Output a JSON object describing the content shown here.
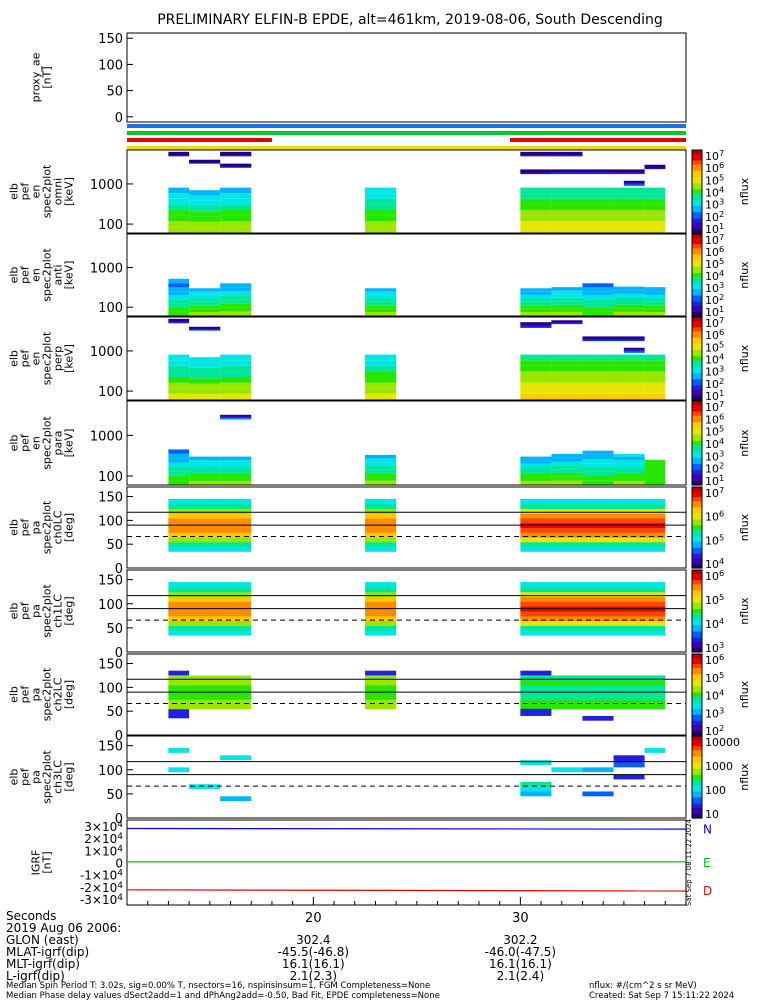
{
  "title": "PRELIMINARY ELFIN-B EPDE, alt=461km, 2019-08-06, South Descending",
  "x_axis": {
    "ticks": [
      "20",
      "30"
    ],
    "row_labels": [
      "Seconds",
      "2019 Aug 06 2006:",
      "GLON (east)",
      "MLAT-igrf(dip)",
      "MLT-igrf(dip)",
      "L-igrf(dip)"
    ],
    "rows": [
      [
        "",
        ""
      ],
      [
        "",
        ""
      ],
      [
        "302.4",
        "302.2"
      ],
      [
        "-45.5(-46.8)",
        "-46.0(-47.5)"
      ],
      [
        "16.1(16.1)",
        "16.1(16.1)"
      ],
      [
        "2.1(2.3)",
        "2.1(2.4)"
      ]
    ]
  },
  "footer": {
    "left1": "Median Spin Period T: 3.02s, sig=0.00% T, nsectors=16, nspinsinsum=1, FGM Completeness=None",
    "left2": "Median Phase delay values dSect2add=1 and dPhAng2add=-0.50, Bad Fit, EPDE completeness=None",
    "right1": "nflux: #/(cm^2 s sr MeV)",
    "right2": "Created: Sat Sep  7 15:11:22 2024"
  },
  "side_stamp": "Sat Sep  7 08:11:22 2024",
  "status_bar_colors": [
    "#1f6fe6",
    "#00c832",
    "#e60000",
    "#f0dc00"
  ],
  "colormap": [
    "#22007a",
    "#3d00b4",
    "#2020e0",
    "#0060ff",
    "#00b4ff",
    "#00e6e6",
    "#00e69a",
    "#28e600",
    "#9ae600",
    "#e6e600",
    "#ffc800",
    "#ff8c00",
    "#ff4600",
    "#e60000",
    "#b40000"
  ],
  "chart_data": [
    {
      "type": "line",
      "name": "proxy_ae",
      "ylabel": "proxy_ae\n[nT]",
      "yticks": [
        "150",
        "100",
        "50",
        "0"
      ],
      "ylim": [
        -10,
        160
      ],
      "series": []
    },
    {
      "type": "heatmap",
      "ylabel": "elb\npef\nen\nspec2plot\nomni\n[keV]",
      "yscale": "log",
      "yticks": [
        "1000",
        "100"
      ],
      "cbar_ticks": [
        "10^7",
        "10^6",
        "10^5",
        "10^4",
        "10^3",
        "10^2",
        "10^1"
      ],
      "cbar_label": "nflux",
      "blocks": [
        [
          13.0,
          14.0,
          5000,
          6300,
          0.5
        ],
        [
          14.0,
          15.5,
          3300,
          4000,
          0.9
        ],
        [
          15.5,
          17.0,
          2600,
          3200,
          1.0
        ],
        [
          15.5,
          17.0,
          5000,
          6300,
          0.4
        ],
        [
          13.0,
          14.0,
          62,
          810,
          7.0
        ],
        [
          14.0,
          15.5,
          62,
          700,
          7.0
        ],
        [
          15.5,
          17.0,
          62,
          810,
          7.0
        ],
        [
          22.5,
          24.0,
          62,
          810,
          7.2
        ],
        [
          30.0,
          31.5,
          62,
          810,
          8.2
        ],
        [
          31.5,
          33.0,
          62,
          810,
          8.2
        ],
        [
          33.0,
          34.5,
          62,
          810,
          8.2
        ],
        [
          34.5,
          36.0,
          62,
          810,
          8.2
        ],
        [
          36.0,
          37.0,
          62,
          810,
          8.2
        ],
        [
          30.0,
          31.5,
          5000,
          6300,
          0.6
        ],
        [
          31.5,
          33.0,
          5000,
          6300,
          1.2
        ],
        [
          30.0,
          31.5,
          1800,
          2300,
          0.7
        ],
        [
          31.5,
          33.0,
          1800,
          2300,
          1.5
        ],
        [
          33.0,
          34.5,
          1800,
          2300,
          1.8
        ],
        [
          34.5,
          36.0,
          1800,
          2300,
          1.3
        ],
        [
          36.0,
          37.0,
          2400,
          3000,
          0.8
        ],
        [
          35.0,
          36.0,
          900,
          1200,
          2.5
        ]
      ]
    },
    {
      "type": "heatmap",
      "ylabel": "elb\npef\nen\nspec2plot\nanti\n[keV]",
      "yscale": "log",
      "yticks": [
        "1000",
        "100"
      ],
      "cbar_ticks": [
        "10^7",
        "10^6",
        "10^5",
        "10^4",
        "10^3",
        "10^2",
        "10^1"
      ],
      "cbar_label": "nflux",
      "blocks": [
        [
          13.0,
          14.0,
          400,
          520,
          3.5
        ],
        [
          13.0,
          14.0,
          62,
          400,
          6.0
        ],
        [
          14.0,
          15.5,
          62,
          300,
          6.8
        ],
        [
          15.5,
          17.0,
          62,
          400,
          6.5
        ],
        [
          22.5,
          24.0,
          62,
          300,
          6.8
        ],
        [
          30.0,
          31.5,
          62,
          300,
          6.5
        ],
        [
          31.5,
          33.0,
          62,
          320,
          6.7
        ],
        [
          33.0,
          34.5,
          62,
          400,
          6.0
        ],
        [
          34.5,
          36.0,
          62,
          330,
          6.5
        ],
        [
          36.0,
          37.0,
          62,
          300,
          6.5
        ],
        [
          36.0,
          37.0,
          250,
          320,
          3.5
        ]
      ]
    },
    {
      "type": "heatmap",
      "ylabel": "elb\npef\nen\nspec2plot\nperp\n[keV]",
      "yscale": "log",
      "yticks": [
        "1000",
        "100"
      ],
      "cbar_ticks": [
        "10^7",
        "10^6",
        "10^5",
        "10^4",
        "10^3",
        "10^2",
        "10^1"
      ],
      "cbar_label": "nflux",
      "blocks": [
        [
          13.0,
          14.0,
          5000,
          6300,
          1.5
        ],
        [
          14.0,
          15.5,
          3300,
          4000,
          2.0
        ],
        [
          13.0,
          14.0,
          62,
          810,
          7.5
        ],
        [
          14.0,
          15.5,
          62,
          700,
          7.5
        ],
        [
          15.5,
          17.0,
          62,
          810,
          7.5
        ],
        [
          22.5,
          24.0,
          62,
          810,
          7.6
        ],
        [
          30.0,
          31.5,
          62,
          810,
          8.8
        ],
        [
          31.5,
          33.0,
          62,
          810,
          8.8
        ],
        [
          33.0,
          34.5,
          62,
          810,
          8.8
        ],
        [
          34.5,
          36.0,
          62,
          810,
          8.8
        ],
        [
          36.0,
          37.0,
          62,
          810,
          8.8
        ],
        [
          30.0,
          31.5,
          3800,
          5200,
          1.8
        ],
        [
          31.5,
          33.0,
          4800,
          5800,
          1.6
        ],
        [
          33.0,
          34.5,
          1800,
          2300,
          1.6
        ],
        [
          34.5,
          36.0,
          1800,
          2300,
          1.6
        ],
        [
          35.0,
          36.0,
          900,
          1200,
          2.8
        ]
      ]
    },
    {
      "type": "heatmap",
      "ylabel": "elb\npef\nen\nspec2plot\npara\n[keV]",
      "yscale": "log",
      "yticks": [
        "1000",
        "100"
      ],
      "cbar_ticks": [
        "10^7",
        "10^6",
        "10^5",
        "10^4",
        "10^3",
        "10^2",
        "10^1"
      ],
      "cbar_label": "nflux",
      "blocks": [
        [
          15.5,
          17.0,
          2500,
          3200,
          3.0
        ],
        [
          13.0,
          14.0,
          62,
          450,
          6.0
        ],
        [
          14.0,
          15.5,
          62,
          300,
          6.8
        ],
        [
          15.5,
          17.0,
          62,
          300,
          6.8
        ],
        [
          22.5,
          24.0,
          62,
          330,
          6.6
        ],
        [
          30.0,
          31.5,
          62,
          300,
          6.5
        ],
        [
          31.5,
          33.0,
          62,
          350,
          6.5
        ],
        [
          33.0,
          34.5,
          62,
          420,
          6.2
        ],
        [
          34.5,
          36.0,
          62,
          300,
          6.8
        ],
        [
          36.0,
          37.0,
          62,
          250,
          7.2
        ],
        [
          34.5,
          36.0,
          300,
          350,
          4.5
        ]
      ]
    },
    {
      "type": "heatmap",
      "ylabel": "elb\npef\npa\nspec2plot\nch0LC\n[deg]",
      "yscale": "linear",
      "ylim": [
        0,
        170
      ],
      "yticks": [
        "150",
        "100",
        "50",
        "0"
      ],
      "cbar_ticks": [
        "10^7",
        "10^6",
        "10^5",
        "10^4"
      ],
      "cbar_label": "nflux",
      "hlines": [
        90,
        117
      ],
      "dashed_y": 66,
      "blocks": [
        [
          13.0,
          17.0,
          35,
          145,
          "pa"
        ],
        [
          22.5,
          24.0,
          35,
          145,
          "pa"
        ],
        [
          30.0,
          37.0,
          35,
          145,
          "pa2"
        ]
      ]
    },
    {
      "type": "heatmap",
      "ylabel": "elb\npef\npa\nspec2plot\nch1LC\n[deg]",
      "yscale": "linear",
      "ylim": [
        0,
        170
      ],
      "yticks": [
        "150",
        "100",
        "50",
        "0"
      ],
      "cbar_ticks": [
        "10^6",
        "10^5",
        "10^4",
        "10^3"
      ],
      "cbar_label": "nflux",
      "hlines": [
        90,
        117
      ],
      "dashed_y": 66,
      "blocks": [
        [
          13.0,
          17.0,
          35,
          145,
          "pa"
        ],
        [
          22.5,
          24.0,
          35,
          145,
          "pa"
        ],
        [
          30.0,
          37.0,
          35,
          145,
          "pa2"
        ]
      ]
    },
    {
      "type": "heatmap",
      "ylabel": "elb\npef\npa\nspec2plot\nch2LC\n[deg]",
      "yscale": "linear",
      "ylim": [
        0,
        170
      ],
      "yticks": [
        "150",
        "100",
        "50",
        "0"
      ],
      "cbar_ticks": [
        "10^6",
        "10^5",
        "10^4",
        "10^3",
        "10^2"
      ],
      "cbar_label": "nflux",
      "hlines": [
        90,
        117
      ],
      "dashed_y": 66,
      "blocks": [
        [
          13.0,
          14.0,
          125,
          135,
          1.5
        ],
        [
          13.0,
          14.0,
          35,
          55,
          1.5
        ],
        [
          13.0,
          17.0,
          55,
          125,
          "pag"
        ],
        [
          22.5,
          24.0,
          55,
          125,
          "pag"
        ],
        [
          22.5,
          24.0,
          125,
          135,
          1.5
        ],
        [
          30.0,
          37.0,
          55,
          125,
          "pag2"
        ],
        [
          30.0,
          31.5,
          40,
          55,
          1.8
        ],
        [
          33.0,
          34.5,
          30,
          40,
          1.5
        ],
        [
          30.0,
          31.5,
          125,
          135,
          1.5
        ]
      ]
    },
    {
      "type": "heatmap",
      "ylabel": "elb\npef\npa\nspec2plot\nch3LC\n[deg]",
      "yscale": "linear",
      "ylim": [
        0,
        170
      ],
      "yticks": [
        "150",
        "100",
        "50",
        "0"
      ],
      "cbar_ticks": [
        "10000",
        "1000",
        "100",
        "10"
      ],
      "cbar_label": "nflux",
      "hlines": [
        90,
        117
      ],
      "dashed_y": 66,
      "blocks": [
        [
          13.0,
          14.0,
          135,
          145,
          4.8
        ],
        [
          13.0,
          14.0,
          95,
          105,
          4.8
        ],
        [
          14.0,
          15.5,
          60,
          70,
          4.5
        ],
        [
          15.5,
          17.0,
          120,
          130,
          5.0
        ],
        [
          15.5,
          17.0,
          35,
          45,
          3.5
        ],
        [
          30.0,
          31.5,
          55,
          65,
          4.5
        ],
        [
          30.0,
          31.5,
          65,
          75,
          5.5
        ],
        [
          30.0,
          31.5,
          45,
          55,
          3.5
        ],
        [
          30.0,
          31.5,
          110,
          120,
          5.2
        ],
        [
          31.5,
          33.0,
          95,
          105,
          5.0
        ],
        [
          33.0,
          34.5,
          95,
          105,
          3.5
        ],
        [
          33.0,
          34.5,
          45,
          55,
          3.0
        ],
        [
          34.5,
          36.0,
          115,
          130,
          2.0
        ],
        [
          34.5,
          36.0,
          105,
          115,
          3.0
        ],
        [
          34.5,
          36.0,
          80,
          90,
          2.0
        ],
        [
          36.0,
          37.0,
          135,
          145,
          4.5
        ]
      ]
    },
    {
      "type": "line",
      "name": "IGRF",
      "ylabel": "IGRF\n[nT]",
      "yticks": [
        "3×10^4",
        "2×10^4",
        "1×10^4",
        "0",
        "-1×10^4",
        "-2×10^4",
        "-3×10^4"
      ],
      "ylim": [
        -35000,
        35000
      ],
      "series_names": [
        "N",
        "E",
        "D"
      ],
      "series": [
        {
          "name": "N",
          "color": "#0000ff",
          "values": [
            28000,
            27500
          ]
        },
        {
          "name": "E",
          "color": "#00c800",
          "values": [
            500,
            500
          ]
        },
        {
          "name": "D",
          "color": "#e60000",
          "values": [
            -22500,
            -23500
          ]
        }
      ]
    }
  ]
}
